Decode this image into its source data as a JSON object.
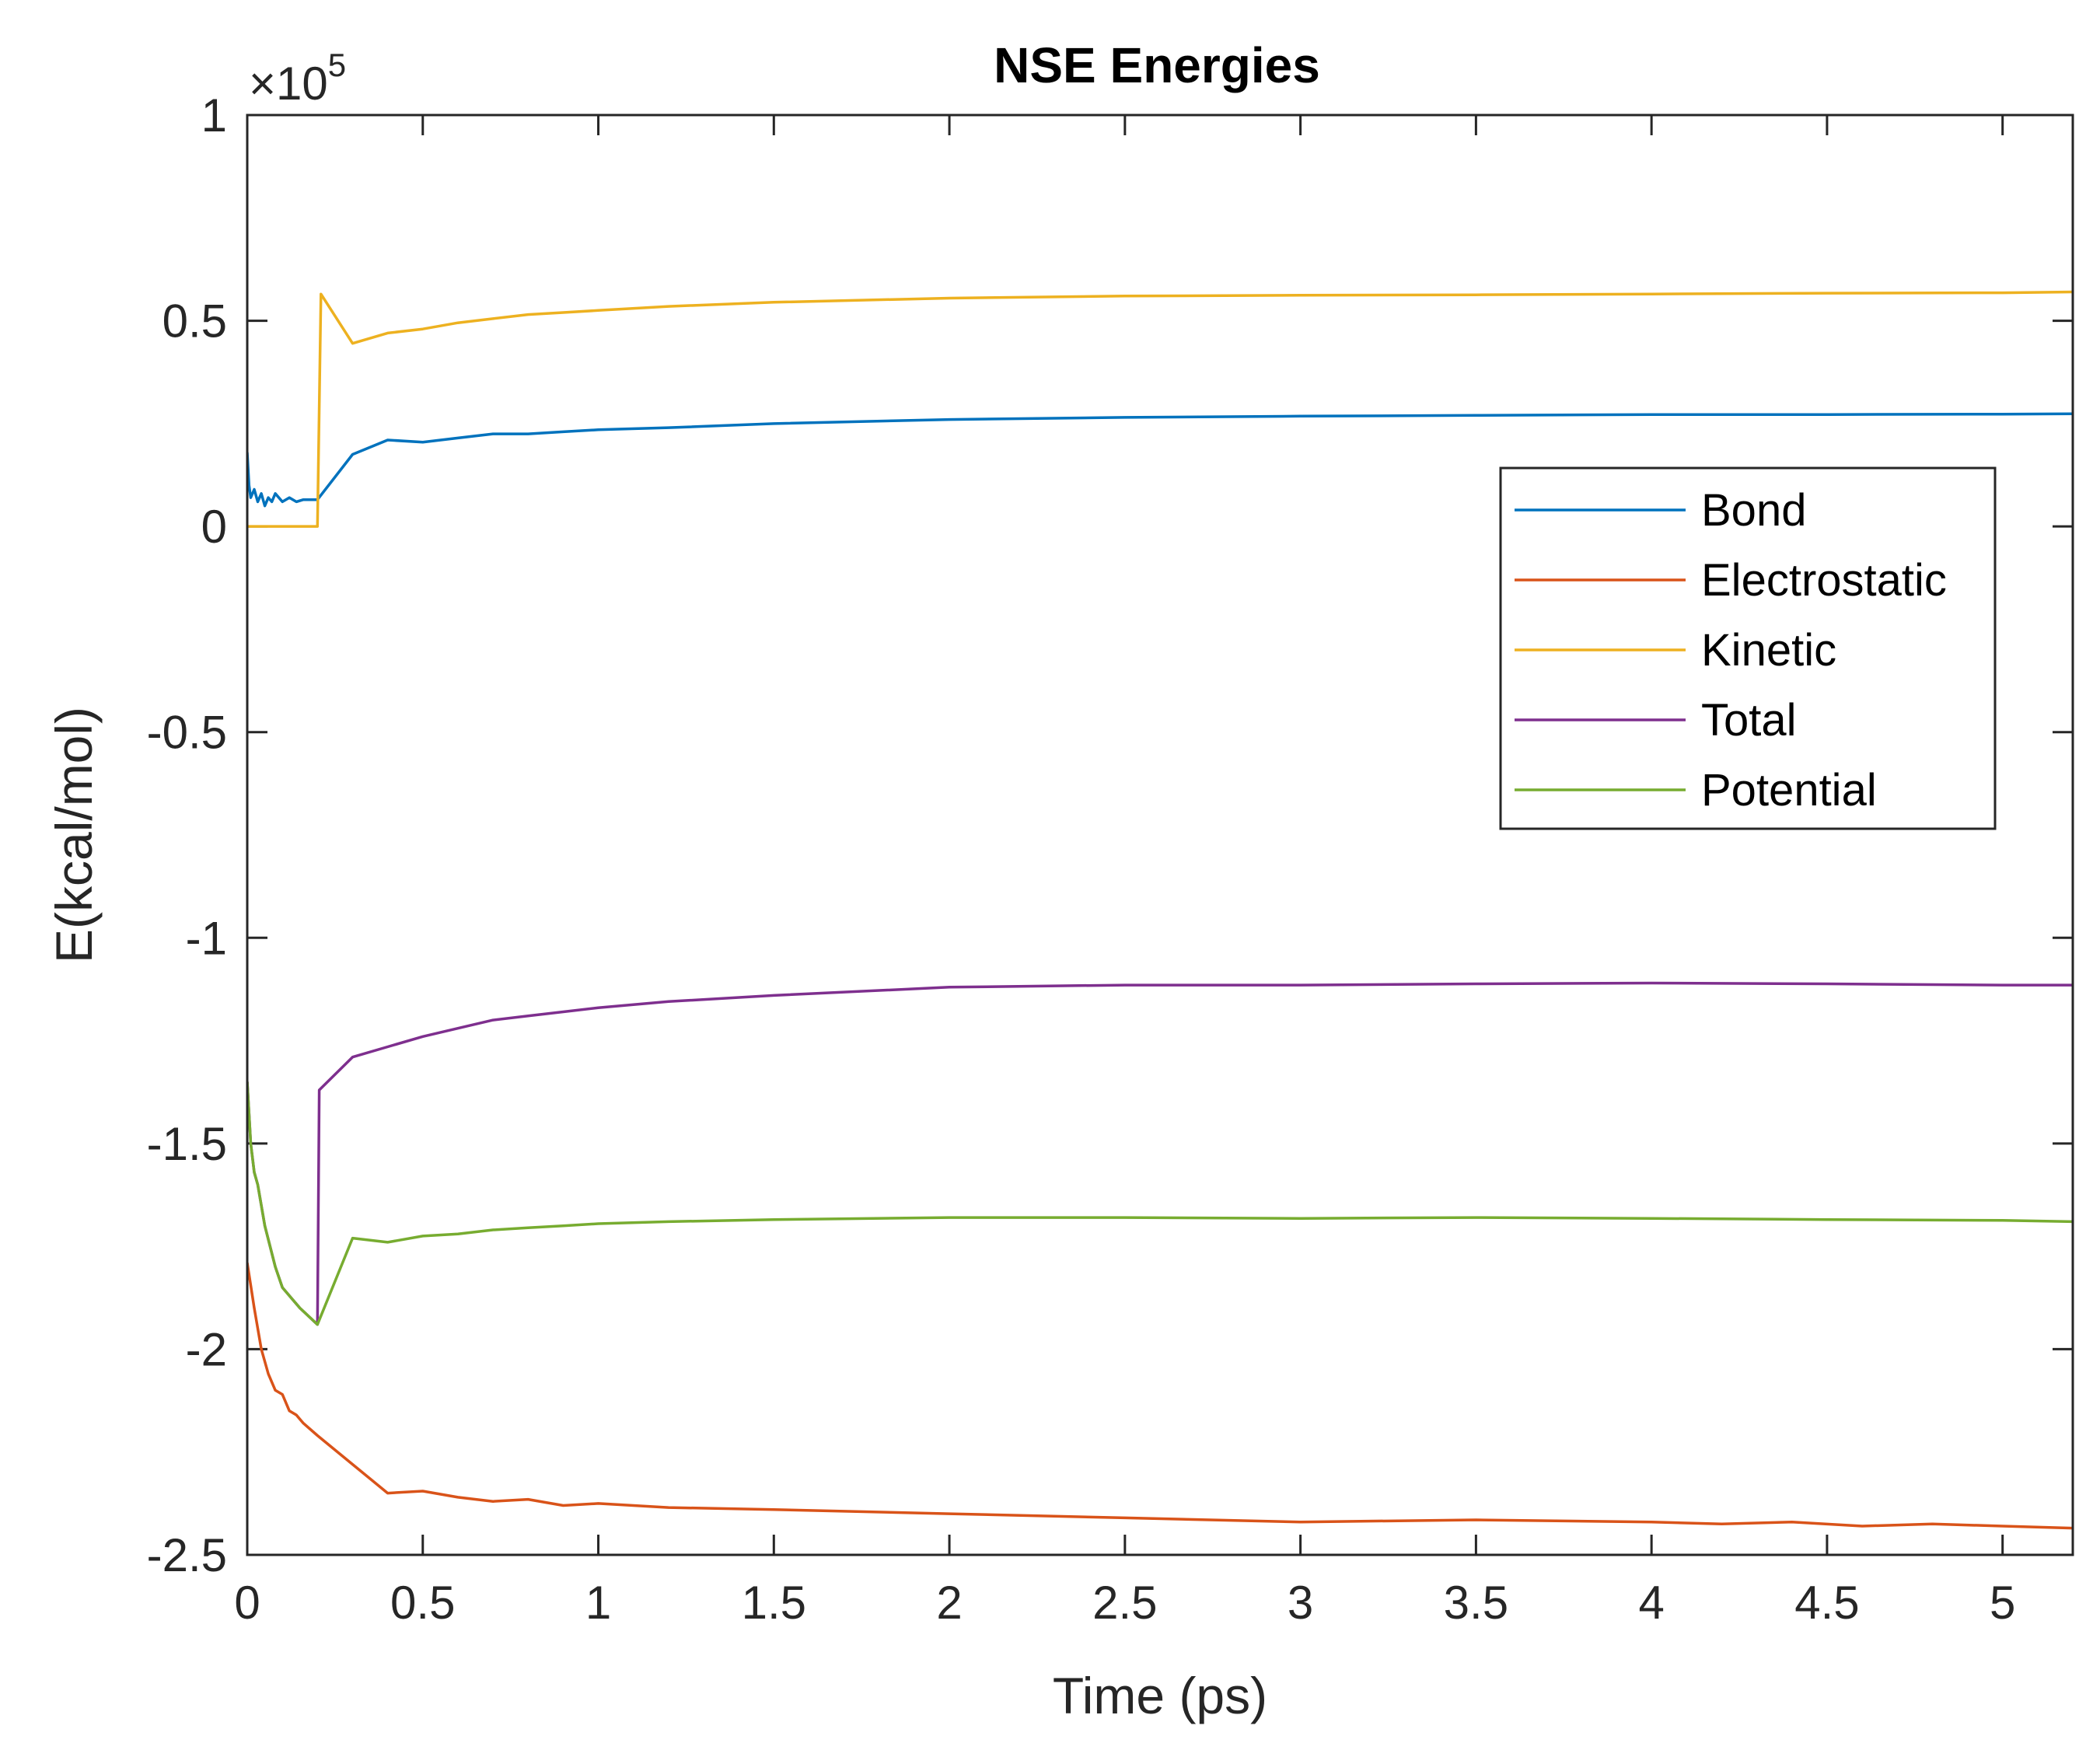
{
  "chart_data": {
    "type": "line",
    "title": "NSE Energies",
    "xlabel": "Time (ps)",
    "ylabel": "E(kcal/mol)",
    "y_exponent": {
      "prefix": "×10",
      "power": "5"
    },
    "xlim": [
      0,
      5.2
    ],
    "ylim": [
      -2.5,
      1
    ],
    "x_ticks": [
      0,
      0.5,
      1,
      1.5,
      2,
      2.5,
      3,
      3.5,
      4,
      4.5,
      5
    ],
    "x_tick_labels": [
      "0",
      "0.5",
      "1",
      "1.5",
      "2",
      "2.5",
      "3",
      "3.5",
      "4",
      "4.5",
      "5"
    ],
    "y_ticks": [
      -2.5,
      -2,
      -1.5,
      -1,
      -0.5,
      0,
      0.5,
      1
    ],
    "y_tick_labels": [
      "-2.5",
      "-2",
      "-1.5",
      "-1",
      "-0.5",
      "0",
      "0.5",
      "1"
    ],
    "legend_position": "upper-right",
    "series": [
      {
        "name": "Bond",
        "color": "#0072BD",
        "x": [
          0,
          0.005,
          0.01,
          0.02,
          0.03,
          0.04,
          0.05,
          0.06,
          0.07,
          0.08,
          0.1,
          0.12,
          0.14,
          0.16,
          0.2,
          0.3,
          0.4,
          0.5,
          0.6,
          0.7,
          0.8,
          0.9,
          1.0,
          1.2,
          1.5,
          2.0,
          2.5,
          3.0,
          3.5,
          4.0,
          4.5,
          5.0,
          5.2
        ],
        "values": [
          0.18,
          0.1,
          0.07,
          0.09,
          0.06,
          0.08,
          0.05,
          0.07,
          0.06,
          0.08,
          0.06,
          0.07,
          0.06,
          0.065,
          0.065,
          0.175,
          0.21,
          0.205,
          0.215,
          0.225,
          0.225,
          0.23,
          0.235,
          0.24,
          0.25,
          0.26,
          0.265,
          0.268,
          0.27,
          0.272,
          0.272,
          0.273,
          0.274
        ]
      },
      {
        "name": "Electrostatic",
        "color": "#D95319",
        "x": [
          0,
          0.02,
          0.04,
          0.06,
          0.08,
          0.1,
          0.12,
          0.14,
          0.16,
          0.2,
          0.3,
          0.4,
          0.5,
          0.6,
          0.7,
          0.8,
          0.9,
          1.0,
          1.2,
          1.5,
          2.0,
          2.5,
          3.0,
          3.5,
          4.0,
          4.2,
          4.4,
          4.6,
          4.8,
          5.0,
          5.2
        ],
        "values": [
          -1.79,
          -1.9,
          -2.0,
          -2.06,
          -2.1,
          -2.11,
          -2.15,
          -2.16,
          -2.18,
          -2.21,
          -2.28,
          -2.35,
          -2.345,
          -2.36,
          -2.37,
          -2.365,
          -2.38,
          -2.375,
          -2.385,
          -2.39,
          -2.4,
          -2.41,
          -2.42,
          -2.415,
          -2.42,
          -2.425,
          -2.42,
          -2.43,
          -2.425,
          -2.43,
          -2.435
        ]
      },
      {
        "name": "Kinetic",
        "color": "#EDB120",
        "x": [
          0,
          0.19,
          0.2,
          0.21,
          0.3,
          0.4,
          0.5,
          0.6,
          0.7,
          0.8,
          0.9,
          1.0,
          1.2,
          1.5,
          2.0,
          2.5,
          3.0,
          3.5,
          4.0,
          4.5,
          5.0,
          5.2
        ],
        "values": [
          0.0,
          0.0,
          0.0,
          0.565,
          0.445,
          0.47,
          0.48,
          0.495,
          0.505,
          0.515,
          0.52,
          0.525,
          0.535,
          0.545,
          0.555,
          0.56,
          0.562,
          0.563,
          0.565,
          0.567,
          0.568,
          0.57
        ]
      },
      {
        "name": "Total",
        "color": "#7E2F8E",
        "x": [
          0,
          0.01,
          0.02,
          0.03,
          0.05,
          0.08,
          0.1,
          0.15,
          0.2,
          0.205,
          0.3,
          0.4,
          0.5,
          0.6,
          0.7,
          0.8,
          0.9,
          1.0,
          1.2,
          1.5,
          2.0,
          2.5,
          3.0,
          3.5,
          4.0,
          4.5,
          5.0,
          5.2
        ],
        "values": [
          -1.35,
          -1.5,
          -1.57,
          -1.6,
          -1.7,
          -1.8,
          -1.85,
          -1.9,
          -1.94,
          -1.37,
          -1.29,
          -1.265,
          -1.24,
          -1.22,
          -1.2,
          -1.19,
          -1.18,
          -1.17,
          -1.155,
          -1.14,
          -1.12,
          -1.115,
          -1.115,
          -1.112,
          -1.11,
          -1.112,
          -1.115,
          -1.115
        ]
      },
      {
        "name": "Potential",
        "color": "#77AC30",
        "x": [
          0,
          0.01,
          0.02,
          0.03,
          0.05,
          0.08,
          0.1,
          0.15,
          0.2,
          0.3,
          0.4,
          0.5,
          0.6,
          0.7,
          0.8,
          0.9,
          1.0,
          1.2,
          1.5,
          2.0,
          2.5,
          3.0,
          3.5,
          4.0,
          4.5,
          5.0,
          5.2
        ],
        "values": [
          -1.35,
          -1.5,
          -1.57,
          -1.6,
          -1.7,
          -1.8,
          -1.85,
          -1.9,
          -1.94,
          -1.73,
          -1.74,
          -1.725,
          -1.72,
          -1.71,
          -1.705,
          -1.7,
          -1.695,
          -1.69,
          -1.685,
          -1.68,
          -1.68,
          -1.682,
          -1.68,
          -1.682,
          -1.685,
          -1.687,
          -1.69
        ]
      }
    ]
  }
}
